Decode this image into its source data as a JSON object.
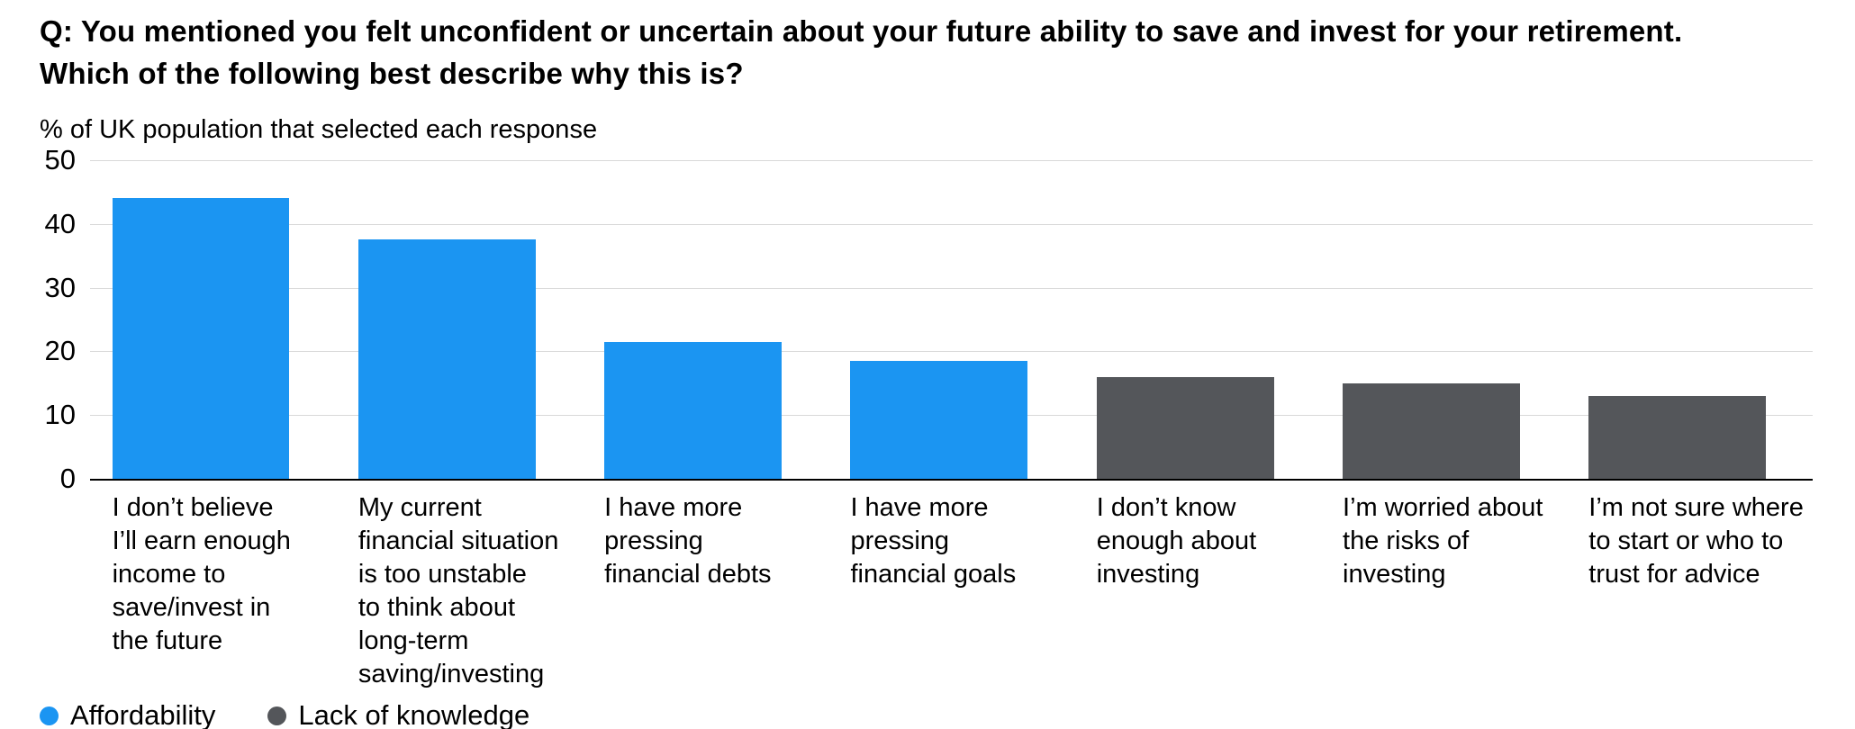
{
  "chart_data": {
    "type": "bar",
    "title": "Q: You mentioned you felt unconfident or uncertain about your future ability to save and invest for your retirement.\nWhich of the following best describe why this is?",
    "subtitle": "% of UK population that selected each response",
    "ylim": [
      0,
      50
    ],
    "yticks": [
      0,
      10,
      20,
      30,
      40,
      50
    ],
    "grid": "horizontal",
    "legend_position": "bottom-left",
    "categories": [
      "I don’t believe\nI’ll earn enough\nincome to\nsave/invest in\nthe future",
      "My current\nfinancial situation\nis too unstable\nto think about\nlong-term\nsaving/investing",
      "I have more\npressing\nfinancial debts",
      "I have more\npressing\nfinancial goals",
      "I don’t know\nenough about\ninvesting",
      "I’m worried about\nthe risks of\ninvesting",
      "I’m not sure where\nto start or who to\ntrust for advice"
    ],
    "values": [
      44,
      37.5,
      21.5,
      18.5,
      16,
      15,
      13
    ],
    "groups": [
      "Affordability",
      "Affordability",
      "Affordability",
      "Affordability",
      "Lack of knowledge",
      "Lack of knowledge",
      "Lack of knowledge"
    ],
    "legend": [
      {
        "label": "Affordability",
        "color": "#1B95F2"
      },
      {
        "label": "Lack of knowledge",
        "color": "#54565A"
      }
    ]
  }
}
